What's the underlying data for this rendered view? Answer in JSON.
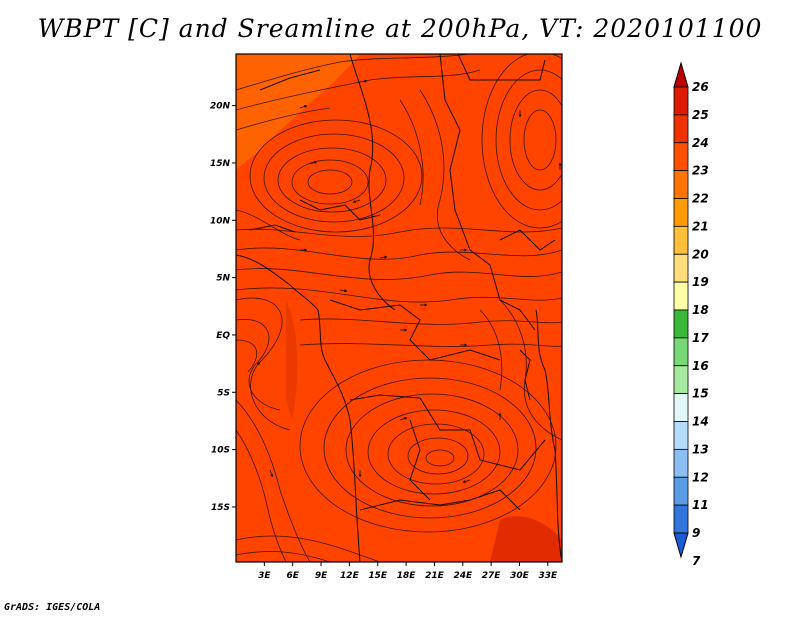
{
  "title": "WBPT [C] and Sreamline at 200hPa, VT: 2020101100",
  "footer": "GrADS: IGES/COLA",
  "map": {
    "lon_labels": [
      "3E",
      "6E",
      "9E",
      "12E",
      "15E",
      "18E",
      "21E",
      "24E",
      "27E",
      "30E",
      "33E"
    ],
    "lat_labels": [
      "20N",
      "15N",
      "10N",
      "5N",
      "EQ",
      "5S",
      "10S",
      "15S"
    ],
    "lon_values": [
      3,
      6,
      9,
      12,
      15,
      18,
      21,
      24,
      27,
      30,
      33
    ],
    "lat_values": [
      20,
      15,
      10,
      5,
      0,
      -5,
      -10,
      -15
    ],
    "lon_range": [
      0,
      34.5
    ],
    "lat_range": [
      -19.8,
      24.5
    ],
    "base_color": "#ff4400",
    "accent_color": "#ff6600"
  },
  "colorbar": {
    "labels": [
      "26",
      "25",
      "24",
      "23",
      "22",
      "21",
      "20",
      "19",
      "18",
      "17",
      "16",
      "15",
      "14",
      "13",
      "12",
      "11",
      "9",
      "7"
    ],
    "colors": [
      "#c00000",
      "#dd1a00",
      "#ee3300",
      "#ff5000",
      "#ff7400",
      "#ff9a00",
      "#ffbe3c",
      "#ffdd7a",
      "#ffffa8",
      "#3ab93a",
      "#78d878",
      "#a6eaa0",
      "#e2f8f8",
      "#b4dcf8",
      "#8cbef2",
      "#5a9ce6",
      "#3276dc",
      "#1a5cd2"
    ]
  }
}
